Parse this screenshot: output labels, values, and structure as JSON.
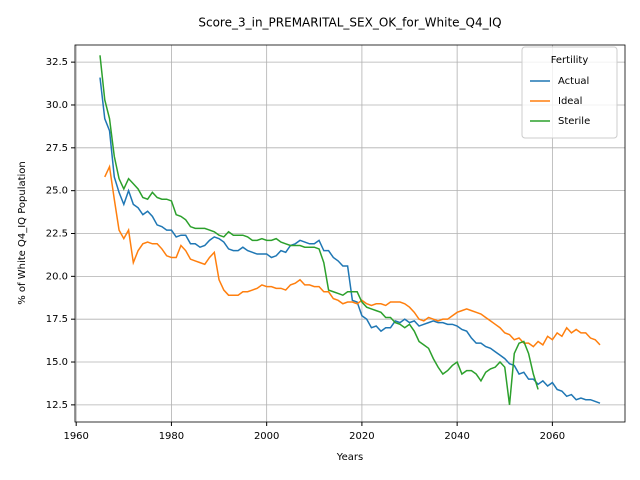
{
  "chart_data": {
    "type": "line",
    "title": "Score_3_in_PREMARITAL_SEX_OK_for_White_Q4_IQ",
    "xlabel": "Years",
    "ylabel": "% of White Q4_IQ Population",
    "legend_title": "Fertility",
    "legend": "upper right",
    "grid": true,
    "xlim": [
      1959.75,
      2075.25
    ],
    "xticks": [
      1960,
      1980,
      2000,
      2020,
      2040,
      2060
    ],
    "ylim": [
      11.5,
      33.5
    ],
    "yticks": [
      12.5,
      {
        "value": 15,
        "label": "15.0"
      },
      17.5,
      {
        "value": 20,
        "label": "20.0"
      },
      22.5,
      {
        "value": 25,
        "label": "25.0"
      },
      27.5,
      {
        "value": 30,
        "label": "30.0"
      },
      32.5
    ],
    "x": [
      1965,
      1966,
      1967,
      1968,
      1969,
      1970,
      1971,
      1972,
      1973,
      1974,
      1975,
      1976,
      1977,
      1978,
      1979,
      1980,
      1981,
      1982,
      1983,
      1984,
      1985,
      1986,
      1987,
      1988,
      1989,
      1990,
      1991,
      1992,
      1993,
      1994,
      1995,
      1996,
      1997,
      1998,
      1999,
      2000,
      2001,
      2002,
      2003,
      2004,
      2005,
      2006,
      2007,
      2008,
      2009,
      2010,
      2011,
      2012,
      2013,
      2014,
      2015,
      2016,
      2017,
      2018,
      2019,
      2020,
      2021,
      2022,
      2023,
      2024,
      2025,
      2026,
      2027,
      2028,
      2029,
      2030,
      2031,
      2032,
      2033,
      2034,
      2035,
      2036,
      2037,
      2038,
      2039,
      2040,
      2041,
      2042,
      2043,
      2044,
      2045,
      2046,
      2047,
      2048,
      2049,
      2050,
      2051,
      2052,
      2053,
      2054,
      2055,
      2056,
      2057,
      2058,
      2059,
      2060,
      2061,
      2062,
      2063,
      2064,
      2065,
      2066,
      2067,
      2068,
      2069,
      2070
    ],
    "series": [
      {
        "name": "Actual",
        "color": "#1f77b4",
        "values": [
          31.6,
          29.2,
          28.5,
          25.8,
          24.9,
          24.2,
          25.0,
          24.2,
          24.0,
          23.6,
          23.8,
          23.5,
          23.0,
          22.9,
          22.7,
          22.7,
          22.3,
          22.4,
          22.4,
          21.9,
          21.9,
          21.7,
          21.8,
          22.1,
          22.3,
          22.2,
          22.0,
          21.6,
          21.5,
          21.5,
          21.7,
          21.5,
          21.4,
          21.3,
          21.3,
          21.3,
          21.1,
          21.2,
          21.5,
          21.4,
          21.8,
          21.9,
          22.1,
          22.0,
          21.9,
          21.9,
          22.1,
          21.5,
          21.5,
          21.1,
          20.9,
          20.6,
          20.6,
          18.6,
          18.5,
          17.7,
          17.5,
          17.0,
          17.1,
          16.8,
          17.0,
          17.0,
          17.4,
          17.3,
          17.5,
          17.3,
          17.4,
          17.1,
          17.2,
          17.3,
          17.4,
          17.3,
          17.3,
          17.2,
          17.2,
          17.1,
          16.9,
          16.8,
          16.4,
          16.1,
          16.1,
          15.9,
          15.8,
          15.6,
          15.4,
          15.2,
          14.9,
          14.8,
          14.3,
          14.4,
          14.0,
          14.0,
          13.7,
          13.9,
          13.6,
          13.8,
          13.4,
          13.3,
          13.0,
          13.1,
          12.8,
          12.9,
          12.8,
          12.8,
          12.7,
          12.6
        ]
      },
      {
        "name": "Ideal",
        "color": "#ff7f0e",
        "values": [
          null,
          25.8,
          26.4,
          24.5,
          22.7,
          22.2,
          22.7,
          20.8,
          21.5,
          21.9,
          22.0,
          21.9,
          21.9,
          21.6,
          21.2,
          21.1,
          21.1,
          21.8,
          21.5,
          21.0,
          20.9,
          20.8,
          20.7,
          21.1,
          21.4,
          19.8,
          19.2,
          18.9,
          18.9,
          18.9,
          19.1,
          19.1,
          19.2,
          19.3,
          19.5,
          19.4,
          19.4,
          19.3,
          19.3,
          19.2,
          19.5,
          19.6,
          19.8,
          19.5,
          19.5,
          19.4,
          19.4,
          19.1,
          19.1,
          18.7,
          18.6,
          18.4,
          18.5,
          18.5,
          18.4,
          18.6,
          18.4,
          18.3,
          18.4,
          18.4,
          18.3,
          18.5,
          18.5,
          18.5,
          18.4,
          18.2,
          17.9,
          17.5,
          17.4,
          17.6,
          17.5,
          17.4,
          17.5,
          17.5,
          17.7,
          17.9,
          18.0,
          18.1,
          18.0,
          17.9,
          17.8,
          17.6,
          17.4,
          17.2,
          17.0,
          16.7,
          16.6,
          16.3,
          16.4,
          16.1,
          16.1,
          15.9,
          16.2,
          16.0,
          16.5,
          16.3,
          16.7,
          16.5,
          17.0,
          16.7,
          16.9,
          16.7,
          16.7,
          16.4,
          16.3,
          16.0
        ]
      },
      {
        "name": "Sterile",
        "color": "#2ca02c",
        "values": [
          32.9,
          30.3,
          29.2,
          27.0,
          25.7,
          25.1,
          25.7,
          25.4,
          25.1,
          24.6,
          24.5,
          24.9,
          24.6,
          24.5,
          24.5,
          24.4,
          23.6,
          23.5,
          23.3,
          22.9,
          22.8,
          22.8,
          22.8,
          22.7,
          22.6,
          22.4,
          22.3,
          22.6,
          22.4,
          22.4,
          22.4,
          22.3,
          22.1,
          22.1,
          22.2,
          22.1,
          22.1,
          22.2,
          22.0,
          21.9,
          21.8,
          21.8,
          21.8,
          21.7,
          21.7,
          21.7,
          21.6,
          20.8,
          19.2,
          19.1,
          19.0,
          18.9,
          19.1,
          19.1,
          19.1,
          18.5,
          18.2,
          18.1,
          18.0,
          17.9,
          17.6,
          17.6,
          17.3,
          17.2,
          17.0,
          17.2,
          16.8,
          16.2,
          16.0,
          15.8,
          15.2,
          14.7,
          14.3,
          14.5,
          14.8,
          15.0,
          14.3,
          14.5,
          14.5,
          14.3,
          13.9,
          14.4,
          14.6,
          14.7,
          15.0,
          14.7,
          12.5,
          15.5,
          16.1,
          16.2,
          15.5,
          14.3,
          13.4,
          null,
          null,
          null,
          null,
          null,
          null,
          null,
          null,
          null,
          null,
          null,
          null,
          null
        ]
      }
    ]
  }
}
